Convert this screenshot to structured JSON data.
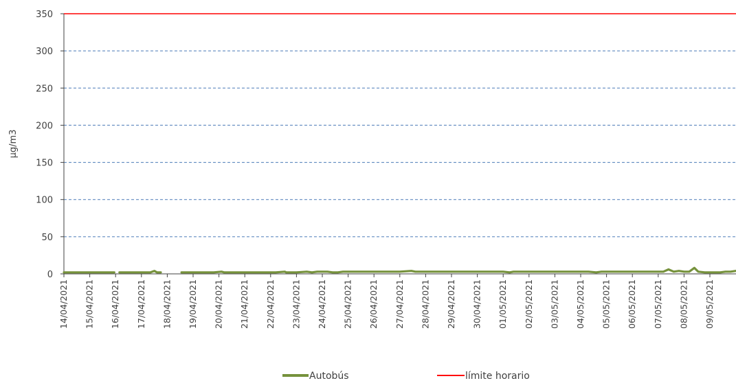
{
  "chart_data": {
    "type": "line",
    "title": "",
    "xlabel": "",
    "ylabel": "µg/m3",
    "ylim": [
      0,
      350
    ],
    "yticks": [
      0,
      50,
      100,
      150,
      200,
      250,
      300,
      350
    ],
    "grid": true,
    "legend_position": "bottom",
    "x_categories": [
      "14/04/2021",
      "15/04/2021",
      "16/04/2021",
      "17/04/2021",
      "18/04/2021",
      "19/04/2021",
      "20/04/2021",
      "21/04/2021",
      "22/04/2021",
      "23/04/2021",
      "24/04/2021",
      "25/04/2021",
      "26/04/2021",
      "27/04/2021",
      "28/04/2021",
      "29/04/2021",
      "30/04/2021",
      "01/05/2021",
      "02/05/2021",
      "03/05/2021",
      "04/05/2021",
      "05/05/2021",
      "06/05/2021",
      "07/05/2021",
      "08/05/2021",
      "09/05/2021"
    ],
    "series": [
      {
        "name": "Autobús",
        "color": "#76923c",
        "points": [
          [
            0.0,
            2
          ],
          [
            0.5,
            2
          ],
          [
            1.0,
            2
          ],
          [
            1.5,
            2
          ],
          [
            1.95,
            2
          ],
          [
            null,
            null
          ],
          [
            2.15,
            2
          ],
          [
            2.6,
            2
          ],
          [
            3.0,
            2
          ],
          [
            3.35,
            2
          ],
          [
            3.5,
            4
          ],
          [
            3.6,
            2
          ],
          [
            3.75,
            2
          ],
          [
            null,
            null
          ],
          [
            4.55,
            2
          ],
          [
            4.8,
            2
          ],
          [
            5.3,
            2
          ],
          [
            5.8,
            2
          ],
          [
            6.1,
            3
          ],
          [
            6.2,
            2
          ],
          [
            6.7,
            2
          ],
          [
            7.2,
            2
          ],
          [
            7.7,
            2
          ],
          [
            8.2,
            2
          ],
          [
            8.55,
            3
          ],
          [
            8.6,
            2
          ],
          [
            9.0,
            2
          ],
          [
            9.4,
            3
          ],
          [
            9.6,
            2
          ],
          [
            9.8,
            3
          ],
          [
            10.0,
            3
          ],
          [
            10.2,
            3
          ],
          [
            10.4,
            2
          ],
          [
            10.6,
            2
          ],
          [
            10.8,
            3
          ],
          [
            11.0,
            3
          ],
          [
            11.5,
            3
          ],
          [
            12.0,
            3
          ],
          [
            12.5,
            3
          ],
          [
            13.0,
            3
          ],
          [
            13.45,
            4
          ],
          [
            13.6,
            3
          ],
          [
            14.0,
            3
          ],
          [
            14.5,
            3
          ],
          [
            15.0,
            3
          ],
          [
            15.5,
            3
          ],
          [
            16.0,
            3
          ],
          [
            16.5,
            3
          ],
          [
            17.0,
            3
          ],
          [
            17.25,
            2
          ],
          [
            17.4,
            3
          ],
          [
            17.8,
            3
          ],
          [
            18.3,
            3
          ],
          [
            18.8,
            3
          ],
          [
            19.3,
            3
          ],
          [
            19.8,
            3
          ],
          [
            20.3,
            3
          ],
          [
            20.6,
            2
          ],
          [
            20.8,
            3
          ],
          [
            21.0,
            3
          ],
          [
            21.5,
            3
          ],
          [
            22.0,
            3
          ],
          [
            22.5,
            3
          ],
          [
            22.9,
            3
          ],
          [
            23.2,
            3
          ],
          [
            23.4,
            6
          ],
          [
            23.6,
            3
          ],
          [
            23.8,
            4
          ],
          [
            24.0,
            3
          ],
          [
            24.2,
            3
          ],
          [
            24.4,
            8
          ],
          [
            24.55,
            3
          ],
          [
            24.8,
            2
          ],
          [
            25.0,
            2
          ],
          [
            25.4,
            2
          ],
          [
            25.6,
            3
          ],
          [
            25.8,
            3
          ],
          [
            26.0,
            4
          ],
          [
            26.2,
            4
          ],
          [
            26.6,
            4
          ]
        ]
      },
      {
        "name": "límite horario",
        "color": "#ff0000",
        "value": 350
      }
    ]
  }
}
